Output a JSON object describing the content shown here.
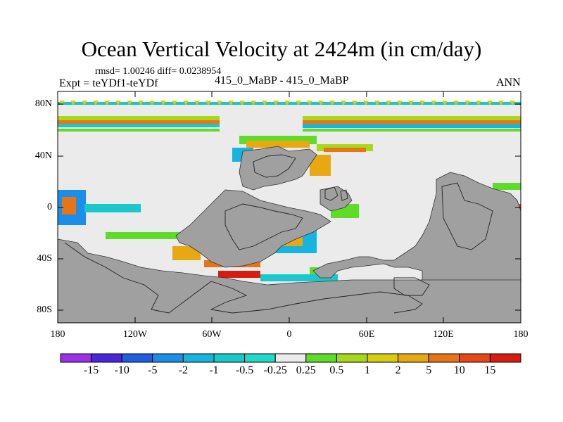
{
  "title": "Ocean Vertical Velocity at 2424m (in cm/day)",
  "stats": "rmsd= 1.00246 diff= 0.0238954",
  "experiment": "Expt = teYDf1-teYDf",
  "case": "415_0_MaBP - 415_0_MaBP",
  "season": "ANN",
  "lat_labels": [
    "80N",
    "40N",
    "0",
    "40S",
    "80S"
  ],
  "lon_labels": [
    "180",
    "120W",
    "60W",
    "0",
    "60E",
    "120E",
    "180"
  ],
  "colorbar": {
    "labels": [
      "-15",
      "-10",
      "-5",
      "-2",
      "-1",
      "-0.5",
      "-0.25",
      "0.25",
      "0.5",
      "1",
      "2",
      "5",
      "10",
      "15"
    ],
    "colors": [
      "#9b30e8",
      "#4a27d8",
      "#1f5ee0",
      "#1a8ee8",
      "#17b4e0",
      "#18c8cc",
      "#22d8c8",
      "#ebebeb",
      "#5fdc2a",
      "#a8d81a",
      "#d8cc10",
      "#e8a812",
      "#e87418",
      "#e84818",
      "#d81c10"
    ]
  },
  "land_color": "#a0a0a0",
  "ocean_color": "#ebebeb"
}
